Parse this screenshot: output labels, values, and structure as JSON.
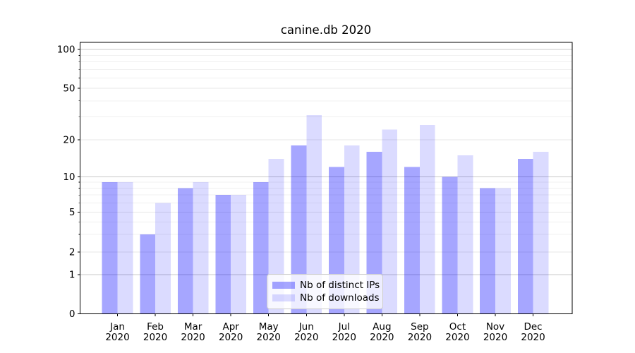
{
  "title": "canine.db 2020",
  "chart_data": {
    "type": "bar",
    "title": "canine.db 2020",
    "categories": [
      "Jan 2020",
      "Feb 2020",
      "Mar 2020",
      "Apr 2020",
      "May 2020",
      "Jun 2020",
      "Jul 2020",
      "Aug 2020",
      "Sep 2020",
      "Oct 2020",
      "Nov 2020",
      "Dec 2020"
    ],
    "series": [
      {
        "name": "Nb of distinct IPs",
        "color": "#0000ff59",
        "values": [
          9,
          3,
          8,
          7,
          9,
          18,
          12,
          16,
          12,
          10,
          8,
          14
        ]
      },
      {
        "name": "Nb of downloads",
        "color": "#0000ff24",
        "values": [
          9,
          6,
          9,
          7,
          14,
          31,
          18,
          24,
          26,
          15,
          8,
          16
        ]
      }
    ],
    "xlabel": "",
    "ylabel": "",
    "yscale": "symlog",
    "ylim": [
      0,
      140
    ],
    "y_ticks": [
      0,
      1,
      2,
      5,
      10,
      20,
      50,
      100
    ],
    "y_minor_ticks": [
      3,
      4,
      6,
      7,
      8,
      9,
      30,
      40,
      60,
      70,
      80,
      90
    ],
    "grid": true,
    "legend_position": "lower center"
  },
  "legend": {
    "items": [
      {
        "label": "Nb of distinct IPs",
        "color": "#0000ff59"
      },
      {
        "label": "Nb of downloads",
        "color": "#0000ff24"
      }
    ]
  },
  "colors": {
    "background": "#ffffff",
    "axis": "#000000",
    "text": "#000000",
    "grid_major": "#c8c8c8",
    "grid_mid": "#e7e7e7",
    "grid_minor": "#f0f0f0",
    "legend_border": "#cccccc"
  }
}
